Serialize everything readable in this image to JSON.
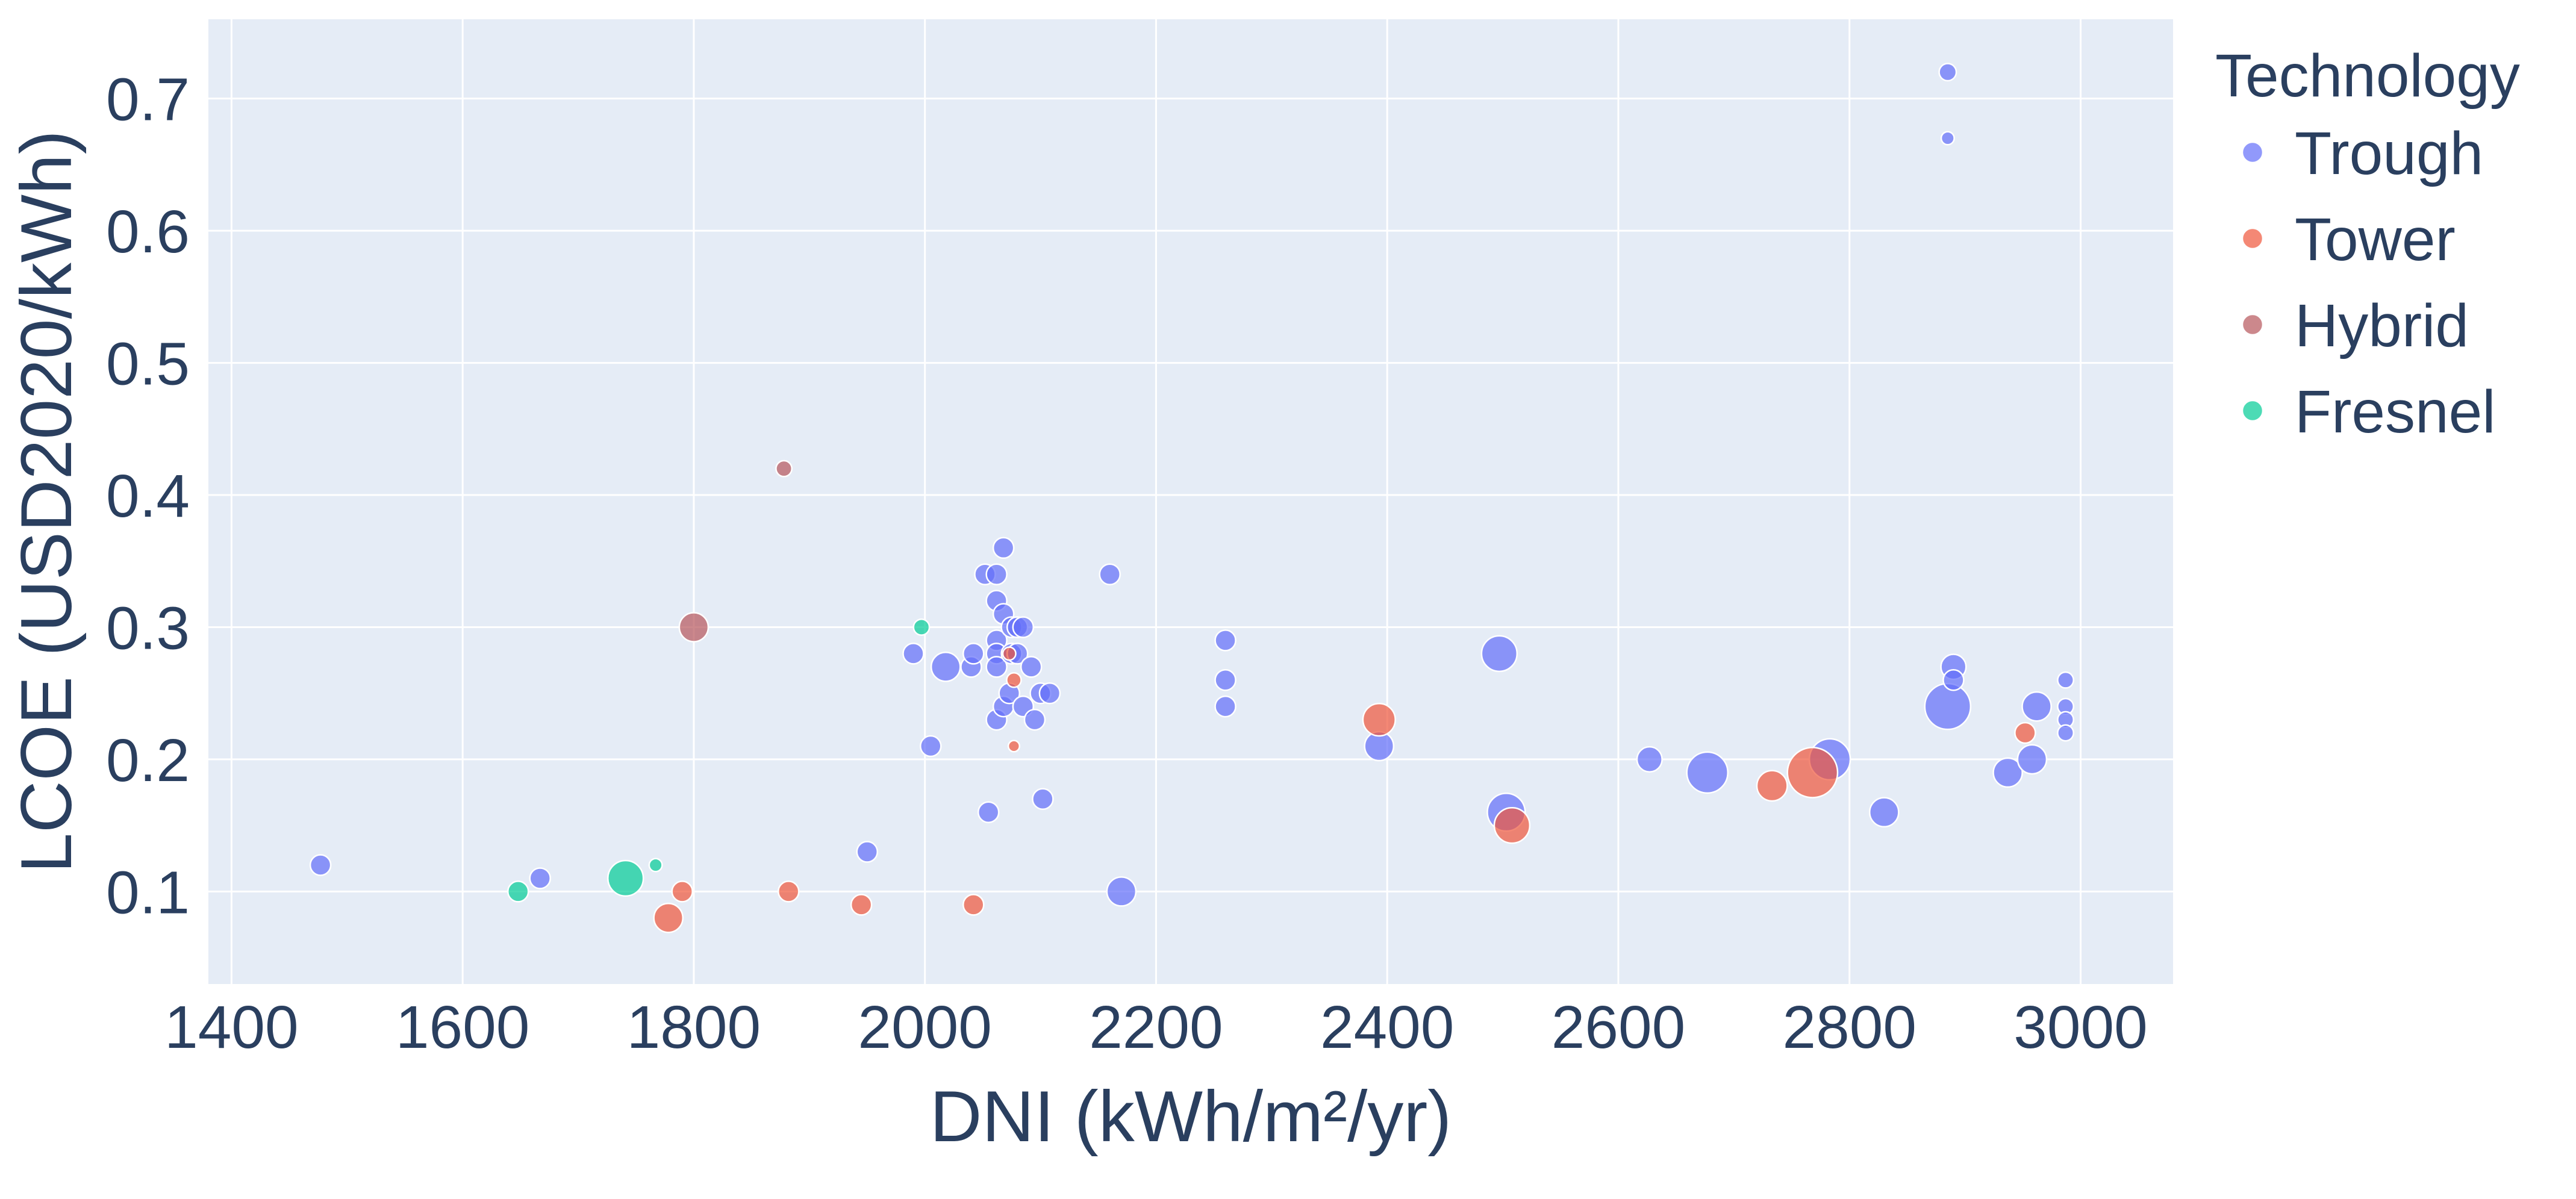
{
  "chart_data": {
    "type": "scatter",
    "title": "",
    "xlabel": "DNI (kWh/m²/yr)",
    "ylabel": "LCOE (USD2020/kWh)",
    "xlim": [
      1380,
      3080
    ],
    "ylim": [
      0.03,
      0.76
    ],
    "xticks": [
      1400,
      1600,
      1800,
      2000,
      2200,
      2400,
      2600,
      2800,
      3000
    ],
    "xtick_labels": [
      "1400",
      "1600",
      "1800",
      "2000",
      "2200",
      "2400",
      "2600",
      "2800",
      "3000"
    ],
    "yticks": [
      0.1,
      0.2,
      0.3,
      0.4,
      0.5,
      0.6,
      0.7
    ],
    "ytick_labels": [
      "0.1",
      "0.2",
      "0.3",
      "0.4",
      "0.5",
      "0.6",
      "0.7"
    ],
    "grid": true,
    "legend": {
      "title": "Technology",
      "position": "right"
    },
    "colors": {
      "plot_bg": "#e5ecf6",
      "grid": "#ffffff",
      "text": "#2a3f5f"
    },
    "series": [
      {
        "name": "Trough",
        "color": "#636efa",
        "points": [
          {
            "x": 1477,
            "y": 0.12,
            "s": 1
          },
          {
            "x": 1667,
            "y": 0.11,
            "s": 1
          },
          {
            "x": 1990,
            "y": 0.28,
            "s": 1
          },
          {
            "x": 2005,
            "y": 0.21,
            "s": 1
          },
          {
            "x": 2018,
            "y": 0.27,
            "s": 2
          },
          {
            "x": 2040,
            "y": 0.27,
            "s": 1
          },
          {
            "x": 2042,
            "y": 0.28,
            "s": 1
          },
          {
            "x": 2052,
            "y": 0.34,
            "s": 1
          },
          {
            "x": 2055,
            "y": 0.16,
            "s": 1
          },
          {
            "x": 2062,
            "y": 0.34,
            "s": 1
          },
          {
            "x": 2062,
            "y": 0.32,
            "s": 1
          },
          {
            "x": 2062,
            "y": 0.29,
            "s": 1
          },
          {
            "x": 2062,
            "y": 0.28,
            "s": 1
          },
          {
            "x": 2062,
            "y": 0.27,
            "s": 1
          },
          {
            "x": 2062,
            "y": 0.23,
            "s": 1
          },
          {
            "x": 2068,
            "y": 0.36,
            "s": 1
          },
          {
            "x": 2068,
            "y": 0.31,
            "s": 1
          },
          {
            "x": 2068,
            "y": 0.24,
            "s": 1
          },
          {
            "x": 2073,
            "y": 0.25,
            "s": 1
          },
          {
            "x": 2075,
            "y": 0.3,
            "s": 1
          },
          {
            "x": 2075,
            "y": 0.28,
            "s": 1
          },
          {
            "x": 2080,
            "y": 0.3,
            "s": 1
          },
          {
            "x": 2080,
            "y": 0.28,
            "s": 1
          },
          {
            "x": 2085,
            "y": 0.3,
            "s": 1
          },
          {
            "x": 2085,
            "y": 0.24,
            "s": 1
          },
          {
            "x": 2092,
            "y": 0.27,
            "s": 1
          },
          {
            "x": 2095,
            "y": 0.23,
            "s": 1
          },
          {
            "x": 2100,
            "y": 0.25,
            "s": 1
          },
          {
            "x": 2102,
            "y": 0.17,
            "s": 1
          },
          {
            "x": 2108,
            "y": 0.25,
            "s": 1
          },
          {
            "x": 2160,
            "y": 0.34,
            "s": 1
          },
          {
            "x": 2170,
            "y": 0.1,
            "s": 2
          },
          {
            "x": 1950,
            "y": 0.13,
            "s": 1
          },
          {
            "x": 2260,
            "y": 0.29,
            "s": 1
          },
          {
            "x": 2260,
            "y": 0.26,
            "s": 1
          },
          {
            "x": 2260,
            "y": 0.24,
            "s": 1
          },
          {
            "x": 2393,
            "y": 0.21,
            "s": 2
          },
          {
            "x": 2497,
            "y": 0.28,
            "s": 3
          },
          {
            "x": 2503,
            "y": 0.16,
            "s": 3.4
          },
          {
            "x": 2627,
            "y": 0.2,
            "s": 1.5
          },
          {
            "x": 2677,
            "y": 0.19,
            "s": 4
          },
          {
            "x": 2783,
            "y": 0.2,
            "s": 4
          },
          {
            "x": 2830,
            "y": 0.16,
            "s": 2
          },
          {
            "x": 2885,
            "y": 0.72,
            "s": 0.7
          },
          {
            "x": 2885,
            "y": 0.67,
            "s": 0.4
          },
          {
            "x": 2885,
            "y": 0.24,
            "s": 5
          },
          {
            "x": 2890,
            "y": 0.27,
            "s": 1.5
          },
          {
            "x": 2890,
            "y": 0.26,
            "s": 1
          },
          {
            "x": 2937,
            "y": 0.19,
            "s": 2
          },
          {
            "x": 2958,
            "y": 0.2,
            "s": 2
          },
          {
            "x": 2962,
            "y": 0.24,
            "s": 2
          },
          {
            "x": 2987,
            "y": 0.26,
            "s": 0.6
          },
          {
            "x": 2987,
            "y": 0.24,
            "s": 0.6
          },
          {
            "x": 2987,
            "y": 0.23,
            "s": 0.6
          },
          {
            "x": 2987,
            "y": 0.22,
            "s": 0.6
          }
        ]
      },
      {
        "name": "Tower",
        "color": "#ef553b",
        "points": [
          {
            "x": 1778,
            "y": 0.08,
            "s": 2
          },
          {
            "x": 1790,
            "y": 0.1,
            "s": 1
          },
          {
            "x": 1882,
            "y": 0.1,
            "s": 1
          },
          {
            "x": 1945,
            "y": 0.09,
            "s": 1
          },
          {
            "x": 2042,
            "y": 0.09,
            "s": 1
          },
          {
            "x": 2073,
            "y": 0.28,
            "s": 0.4
          },
          {
            "x": 2077,
            "y": 0.26,
            "s": 0.5
          },
          {
            "x": 2077,
            "y": 0.21,
            "s": 0.3
          },
          {
            "x": 2393,
            "y": 0.23,
            "s": 2.5
          },
          {
            "x": 2508,
            "y": 0.15,
            "s": 3
          },
          {
            "x": 2733,
            "y": 0.18,
            "s": 2.2
          },
          {
            "x": 2768,
            "y": 0.19,
            "s": 6
          },
          {
            "x": 2952,
            "y": 0.22,
            "s": 1
          }
        ]
      },
      {
        "name": "Hybrid",
        "color": "#b6565b",
        "points": [
          {
            "x": 1878,
            "y": 0.42,
            "s": 0.6
          },
          {
            "x": 1800,
            "y": 0.3,
            "s": 2
          }
        ]
      },
      {
        "name": "Fresnel",
        "color": "#00cc96",
        "points": [
          {
            "x": 1648,
            "y": 0.1,
            "s": 1
          },
          {
            "x": 1741,
            "y": 0.11,
            "s": 3
          },
          {
            "x": 1767,
            "y": 0.12,
            "s": 0.4
          },
          {
            "x": 1997,
            "y": 0.3,
            "s": 0.6
          }
        ]
      }
    ]
  }
}
